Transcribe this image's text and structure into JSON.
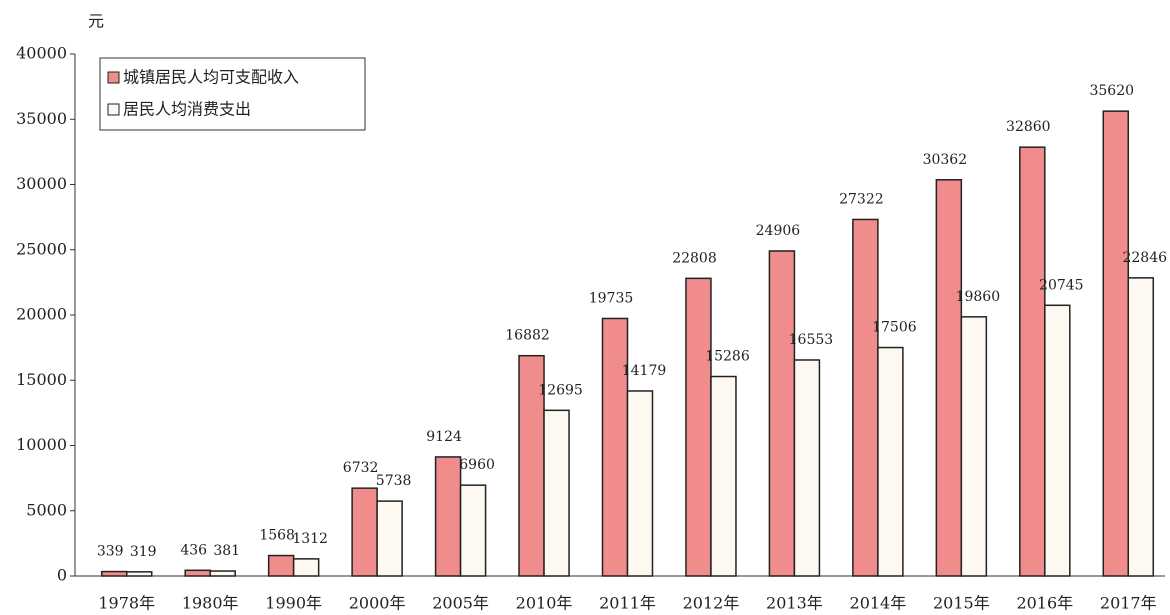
{
  "chart_data": {
    "type": "bar",
    "y_label": "元",
    "categories": [
      "1978年",
      "1980年",
      "1990年",
      "2000年",
      "2005年",
      "2010年",
      "2011年",
      "2012年",
      "2013年",
      "2014年",
      "2015年",
      "2016年",
      "2017年"
    ],
    "series": [
      {
        "name": "城镇居民人均可支配收入",
        "color": "#f08c8c",
        "values": [
          339,
          436,
          1568,
          6732,
          9124,
          16882,
          19735,
          22808,
          24906,
          27322,
          30362,
          32860,
          35620
        ]
      },
      {
        "name": "居民人均消费支出",
        "color": "#fdf8f0",
        "values": [
          319,
          381,
          1312,
          5738,
          6960,
          12695,
          14179,
          15286,
          16553,
          17506,
          19860,
          20745,
          22846
        ]
      }
    ],
    "ylim": [
      0,
      40000
    ],
    "yticks": [
      0,
      5000,
      10000,
      15000,
      20000,
      25000,
      30000,
      35000,
      40000
    ],
    "legend": "upper left"
  }
}
